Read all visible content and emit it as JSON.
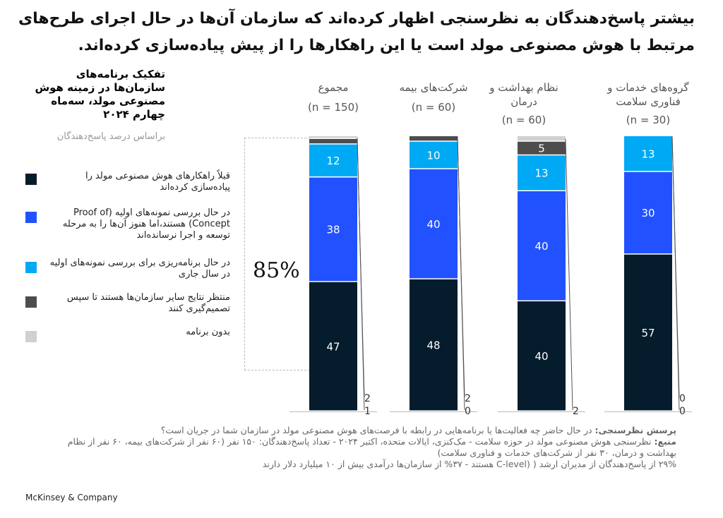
{
  "title": "بیشتر پاسخ‌دهندگان به نظرسنجی اظهار کرده‌اند که سازمان آن‌ها در حال اجرای طرح‌های مرتبط با هوش مصنوعی مولد است یا این راهکارها را از پیش پیاده‌سازی کرده‌اند.",
  "subtitle": "تفکیک برنامه‌های سازمان‌ها در زمینه هوش مصنوعی مولد، سه‌ماه چهارم ۲۰۲۴",
  "unit_note": "براساس درصد پاسخ‌دهندگان",
  "highlight": "85%",
  "legend": [
    {
      "label": "قبلاً راهکارهای هوش مصنوعی مولد را پیاده‌سازی کرده‌اند",
      "color": "#051c2c"
    },
    {
      "label": "در حال بررسی نمونه‌های اولیه (Proof of Concept) هستند،اما هنوز آن‌ها را به مرحله توسعه و اجرا نرسانده‌اند",
      "color": "#2251ff"
    },
    {
      "label": "در حال برنامه‌ریزی برای بررسی نمونه‌های اولیه در سال جاری",
      "color": "#00a9f4"
    },
    {
      "label": "منتظر نتایج سایر سازمان‌ها هستند تا سپس تصمیم‌گیری کنند",
      "color": "#4d4d4d"
    },
    {
      "label": "بدون برنامه",
      "color": "#d0d0d0"
    }
  ],
  "chart_data": {
    "type": "bar",
    "stacked": true,
    "categories": [
      "مجموع",
      "شرکت‌های بیمه",
      "نظام بهداشت و درمان",
      "گروه‌های خدمات و فناوری سلامت"
    ],
    "n_labels": [
      "(n = 150)",
      "(n = 60)",
      "(n = 60)",
      "(n = 30)"
    ],
    "series": [
      {
        "name": "قبلاً پیاده‌سازی کرده‌اند",
        "values": [
          47,
          48,
          40,
          57
        ]
      },
      {
        "name": "در حال بررسی نمونه‌های اولیه",
        "values": [
          38,
          40,
          40,
          30
        ]
      },
      {
        "name": "در حال برنامه‌ریزی",
        "values": [
          12,
          10,
          13,
          13
        ]
      },
      {
        "name": "منتظر نتایج سایر سازمان‌ها",
        "values": [
          2,
          2,
          5,
          0
        ]
      },
      {
        "name": "بدون برنامه",
        "values": [
          1,
          0,
          2,
          0
        ]
      }
    ],
    "ylim": [
      0,
      100
    ]
  },
  "footer": {
    "question_label": "پرسش نظرسنجی:",
    "question": " در حال حاضر چه فعالیت‌ها یا برنامه‌هایی در رابطه با فرصت‌های هوش مصنوعی مولد در سازمان شما در جریان است؟",
    "source_label": "منبع:",
    "source": " نظرسنجی هوش مصنوعی مولد در حوزه سلامت - مک‌کنزی، ایالات متحده، اکتبر ۲۰۲۴ - تعداد پاسخ‌دهندگان: ۱۵۰ نفر (۶۰ نفر از شرکت‌های بیمه، ۶۰ نفر از نظام بهداشت و درمان، ۳۰ نفر از شرکت‌های خدمات و فناوری سلامت)",
    "note": "۲۹% از پاسخ‌دهندگان از مدیران ارشد ( (C-level هستند - ۳۷% از سازمان‌ها درآمدی بیش از ۱۰ میلیارد دلار دارند"
  },
  "brand": "McKinsey & Company"
}
